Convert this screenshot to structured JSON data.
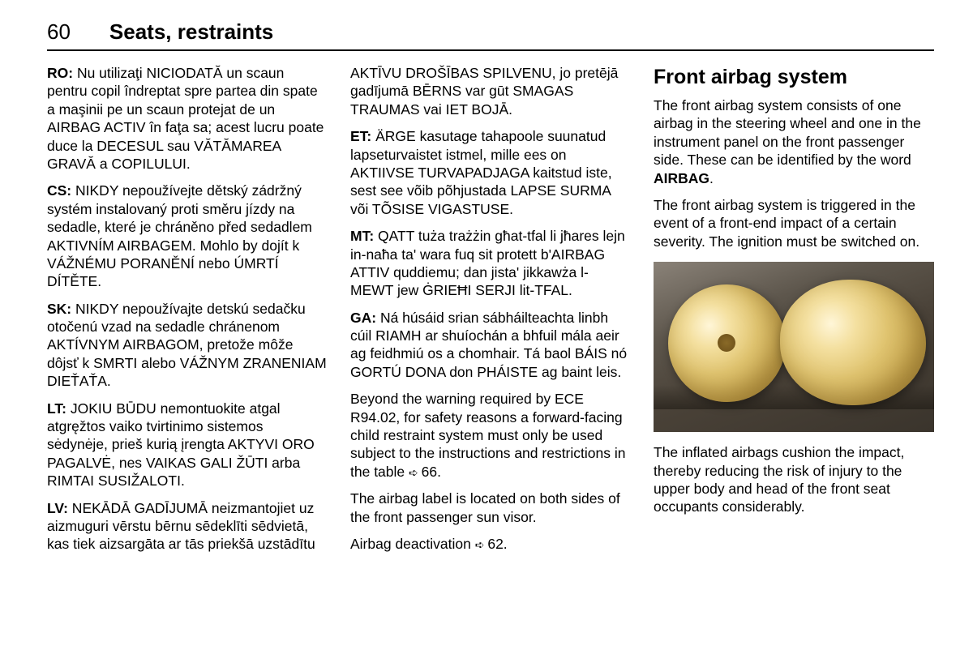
{
  "header": {
    "page_number": "60",
    "section": "Seats, restraints"
  },
  "col1": {
    "ro_label": "RO:",
    "ro_text": " Nu utilizaţi NICIODATĂ un scaun pentru copil îndreptat spre partea din spate a maşinii pe un scaun protejat de un AIRBAG ACTIV în faţa sa; acest lucru poate duce la DECESUL sau VĂTĂMAREA GRAVĂ a COPILULUI.",
    "cs_label": "CS:",
    "cs_text": " NIKDY nepoužívejte dětský zádržný systém instalovaný proti směru jízdy na sedadle, které je chráněno před sedadlem AKTIVNÍM AIRBAGEM. Mohlo by dojít k VÁŽNÉMU PORANĚNÍ nebo ÚMRTÍ DÍTĚTE.",
    "sk_label": "SK:",
    "sk_text": " NIKDY nepoužívajte detskú sedačku otočenú vzad na sedadle chránenom AKTÍVNYM AIRBAGOM, pretože môže dôjsť k SMRTI alebo VÁŽNYM ZRANENIAM DIEŤAŤA.",
    "lt_label": "LT:",
    "lt_text": " JOKIU BŪDU nemontuokite atgal atgręžtos vaiko tvirtinimo sistemos sėdynėje, prieš kurią įrengta AKTYVI ORO PAGALVĖ, nes VAIKAS GALI ŽŪTI arba RIMTAI SUSIŽALOTI.",
    "lv_label": "LV:",
    "lv_text": " NEKĀDĀ GADĪJUMĀ neizmantojiet uz aizmuguri vērstu bērnu sēdeklīti sēdvietā, kas tiek aizsargāta ar tās priekšā uzstādītu"
  },
  "col2": {
    "lv_cont": "AKTĪVU DROŠĪBAS SPILVENU, jo pretējā gadījumā BĒRNS var gūt SMAGAS TRAUMAS vai IET BOJĀ.",
    "et_label": "ET:",
    "et_text": " ÄRGE kasutage tahapoole suunatud lapseturvaistet istmel, mille ees on AKTIIVSE TURVAPADJAGA kaitstud iste, sest see võib põhjustada LAPSE SURMA või TÕSISE VIGASTUSE.",
    "mt_label": "MT:",
    "mt_text": " QATT tuża trażżin għat-tfal li jħares lejn in-naħa ta' wara fuq sit protett b'AIRBAG ATTIV quddiemu; dan jista' jikkawża l-MEWT jew ĠRIEĦI SERJI lit-TFAL.",
    "ga_label": "GA:",
    "ga_text": " Ná húsáid srian sábháilteachta linbh cúil RIAMH ar shuíochán a bhfuil mála aeir ag feidhmiú os a chomhair. Tá baol BÁIS nó GORTÚ DONA don PHÁISTE ag baint leis.",
    "beyond_text": "Beyond the warning required by ECE R94.02, for safety reasons a forward-facing child restraint system must only be used subject to the instructions and restrictions in the table ",
    "beyond_ref": "66.",
    "label_loc": "The airbag label is located on both sides of the front passenger sun visor.",
    "deact_text": "Airbag deactivation ",
    "deact_ref": "62."
  },
  "col3": {
    "heading": "Front airbag system",
    "p1_a": "The front airbag system consists of one airbag in the steering wheel and one in the instrument panel on the front passenger side. These can be identified by the word ",
    "p1_b": "AIRBAG",
    "p1_c": ".",
    "p2": "The front airbag system is triggered in the event of a front-end impact of a certain severity. The ignition must be switched on.",
    "p3": "The inflated airbags cushion the impact, thereby reducing the risk of injury to the upper body and head of the front seat occupants considerably."
  }
}
